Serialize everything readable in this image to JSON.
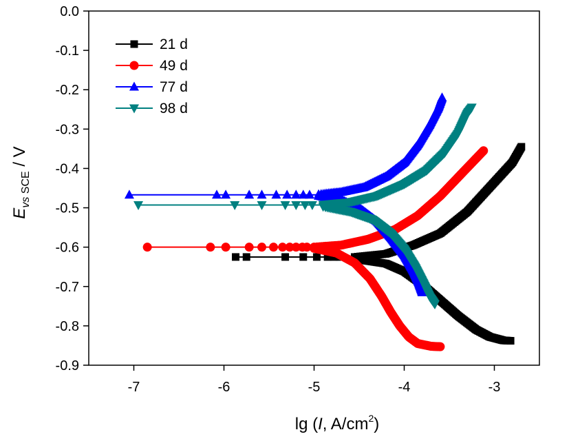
{
  "chart_data": {
    "type": "line",
    "xlabel": "lg (I, A/cm2)",
    "ylabel": "E vs SCE / V",
    "xlabel_parts": {
      "prefix": "lg (",
      "italic": "I",
      "mid": ", A/cm",
      "sup": "2",
      "suffix": ")"
    },
    "ylabel_parts": {
      "main": "E",
      "sub": "vs",
      "sub2": " SCE",
      "suffix": " / V"
    },
    "xlim": [
      -7.5,
      -2.5
    ],
    "ylim": [
      -0.9,
      0.0
    ],
    "x_ticks": [
      -7,
      -6,
      -5,
      -4,
      -3
    ],
    "x_tick_labels": [
      "-7",
      "-6",
      "-5",
      "-4",
      "-3"
    ],
    "y_ticks": [
      0.0,
      -0.1,
      -0.2,
      -0.3,
      -0.4,
      -0.5,
      -0.6,
      -0.7,
      -0.8,
      -0.9
    ],
    "y_tick_labels": [
      "0.0",
      "-0.1",
      "-0.2",
      "-0.3",
      "-0.4",
      "-0.5",
      "-0.6",
      "-0.7",
      "-0.8",
      "-0.9"
    ],
    "grid": false,
    "legend_position": "top-left",
    "series": [
      {
        "name": "21 d",
        "color": "#000000",
        "marker": "square",
        "Ecorr": -0.625,
        "flat": [
          -5.87,
          -5.75,
          -5.32,
          -5.12,
          -4.97,
          -4.85,
          -4.78,
          -4.72
        ],
        "anodic": [
          [
            -4.55,
            -0.625
          ],
          [
            -4.2,
            -0.617
          ],
          [
            -3.9,
            -0.595
          ],
          [
            -3.6,
            -0.565
          ],
          [
            -3.3,
            -0.51
          ],
          [
            -3.0,
            -0.435
          ],
          [
            -2.8,
            -0.385
          ],
          [
            -2.7,
            -0.345
          ]
        ],
        "cathodic": [
          [
            -4.55,
            -0.63
          ],
          [
            -4.2,
            -0.642
          ],
          [
            -4.0,
            -0.662
          ],
          [
            -3.8,
            -0.695
          ],
          [
            -3.6,
            -0.735
          ],
          [
            -3.4,
            -0.775
          ],
          [
            -3.2,
            -0.81
          ],
          [
            -3.05,
            -0.828
          ],
          [
            -2.9,
            -0.837
          ],
          [
            -2.82,
            -0.838
          ]
        ]
      },
      {
        "name": "49 d",
        "color": "#ff0000",
        "marker": "circle",
        "Ecorr": -0.6,
        "flat": [
          -6.85,
          -6.15,
          -5.98,
          -5.72,
          -5.58,
          -5.45,
          -5.35,
          -5.27,
          -5.2,
          -5.13,
          -5.08
        ],
        "anodic": [
          [
            -5.0,
            -0.6
          ],
          [
            -4.7,
            -0.595
          ],
          [
            -4.4,
            -0.58
          ],
          [
            -4.1,
            -0.555
          ],
          [
            -3.85,
            -0.52
          ],
          [
            -3.6,
            -0.47
          ],
          [
            -3.35,
            -0.41
          ],
          [
            -3.12,
            -0.355
          ]
        ],
        "cathodic": [
          [
            -5.0,
            -0.603
          ],
          [
            -4.75,
            -0.615
          ],
          [
            -4.55,
            -0.64
          ],
          [
            -4.38,
            -0.68
          ],
          [
            -4.25,
            -0.725
          ],
          [
            -4.15,
            -0.765
          ],
          [
            -4.05,
            -0.8
          ],
          [
            -3.95,
            -0.828
          ],
          [
            -3.85,
            -0.845
          ],
          [
            -3.7,
            -0.852
          ],
          [
            -3.6,
            -0.853
          ]
        ]
      },
      {
        "name": "77 d",
        "color": "#0000ff",
        "marker": "triangle-up",
        "Ecorr": -0.467,
        "flat": [
          -7.05,
          -6.08,
          -5.98,
          -5.72,
          -5.58,
          -5.42,
          -5.3,
          -5.2,
          -5.12,
          -5.05
        ],
        "anodic": [
          [
            -4.95,
            -0.466
          ],
          [
            -4.7,
            -0.46
          ],
          [
            -4.45,
            -0.448
          ],
          [
            -4.2,
            -0.42
          ],
          [
            -4.0,
            -0.385
          ],
          [
            -3.85,
            -0.34
          ],
          [
            -3.72,
            -0.29
          ],
          [
            -3.62,
            -0.245
          ],
          [
            -3.58,
            -0.22
          ]
        ],
        "cathodic": [
          [
            -4.95,
            -0.47
          ],
          [
            -4.7,
            -0.48
          ],
          [
            -4.5,
            -0.5
          ],
          [
            -4.3,
            -0.535
          ],
          [
            -4.15,
            -0.575
          ],
          [
            -4.0,
            -0.62
          ],
          [
            -3.9,
            -0.66
          ],
          [
            -3.84,
            -0.69
          ],
          [
            -3.8,
            -0.715
          ]
        ]
      },
      {
        "name": "98 d",
        "color": "#008080",
        "marker": "triangle-down",
        "Ecorr": -0.493,
        "flat": [
          -6.95,
          -5.88,
          -5.58,
          -5.32,
          -5.2,
          -5.1,
          -5.02
        ],
        "anodic": [
          [
            -4.9,
            -0.492
          ],
          [
            -4.6,
            -0.486
          ],
          [
            -4.3,
            -0.47
          ],
          [
            -4.0,
            -0.44
          ],
          [
            -3.75,
            -0.405
          ],
          [
            -3.55,
            -0.36
          ],
          [
            -3.4,
            -0.31
          ],
          [
            -3.3,
            -0.26
          ],
          [
            -3.25,
            -0.245
          ]
        ],
        "cathodic": [
          [
            -4.9,
            -0.497
          ],
          [
            -4.6,
            -0.51
          ],
          [
            -4.35,
            -0.53
          ],
          [
            -4.15,
            -0.565
          ],
          [
            -4.0,
            -0.605
          ],
          [
            -3.88,
            -0.65
          ],
          [
            -3.78,
            -0.695
          ],
          [
            -3.72,
            -0.725
          ],
          [
            -3.66,
            -0.745
          ]
        ]
      }
    ]
  }
}
